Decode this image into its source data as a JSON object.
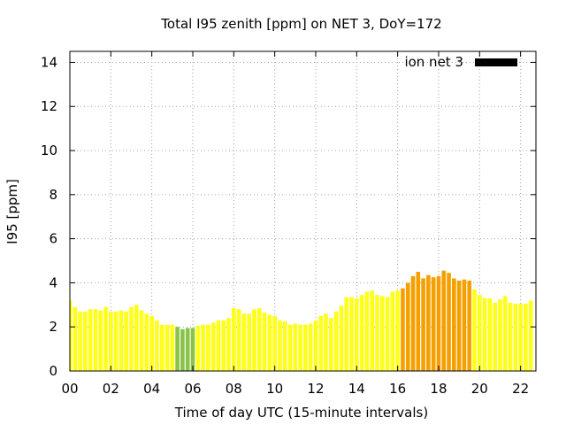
{
  "chart_data": {
    "type": "bar",
    "title": "Total I95 zenith [ppm] on NET 3, DoY=172",
    "xlabel": "Time of day UTC (15-minute intervals)",
    "ylabel": "I95 [ppm]",
    "xlim": [
      0,
      22.75
    ],
    "ylim": [
      0,
      14.5
    ],
    "xticks": [
      0,
      2,
      4,
      6,
      8,
      10,
      12,
      14,
      16,
      18,
      20,
      22
    ],
    "xtick_labels": [
      "00",
      "02",
      "04",
      "06",
      "08",
      "10",
      "12",
      "14",
      "16",
      "18",
      "20",
      "22"
    ],
    "yticks": [
      0,
      2,
      4,
      6,
      8,
      10,
      12,
      14
    ],
    "ytick_labels": [
      "0",
      "2",
      "4",
      "6",
      "8",
      "10",
      "12",
      "14"
    ],
    "grid": true,
    "legend": {
      "position": "top-right",
      "label": "ion net 3",
      "color": "#000000"
    },
    "colors": {
      "low": "#8bc34a",
      "normal": "#ffff1a",
      "high": "#f5a000"
    },
    "bar_interval_hours": 0.25,
    "series": [
      {
        "x": [
          0,
          0.25,
          0.5,
          0.75,
          1,
          1.25,
          1.5,
          1.75,
          2,
          2.25,
          2.5,
          2.75,
          3,
          3.25,
          3.5,
          3.75,
          4,
          4.25,
          4.5,
          4.75,
          5,
          5.25,
          5.5,
          5.75,
          6,
          6.25,
          6.5,
          6.75,
          7,
          7.25,
          7.5,
          7.75,
          8,
          8.25,
          8.5,
          8.75,
          9,
          9.25,
          9.5,
          9.75,
          10,
          10.25,
          10.5,
          10.75,
          11,
          11.25,
          11.5,
          11.75,
          12,
          12.25,
          12.5,
          12.75,
          13,
          13.25,
          13.5,
          13.75,
          14,
          14.25,
          14.5,
          14.75,
          15,
          15.25,
          15.5,
          15.75,
          16,
          16.25,
          16.5,
          16.75,
          17,
          17.25,
          17.5,
          17.75,
          18,
          18.25,
          18.5,
          18.75,
          19,
          19.25,
          19.5,
          19.75,
          20,
          20.25,
          20.5,
          20.75,
          21,
          21.25,
          21.5,
          21.75,
          22,
          22.25,
          22.5
        ],
        "values": [
          3.2,
          2.9,
          2.7,
          2.7,
          2.8,
          2.8,
          2.75,
          2.9,
          2.7,
          2.7,
          2.75,
          2.7,
          2.9,
          3.0,
          2.75,
          2.6,
          2.5,
          2.3,
          2.1,
          2.1,
          2.1,
          2.0,
          1.9,
          1.95,
          1.95,
          2.05,
          2.1,
          2.1,
          2.2,
          2.3,
          2.3,
          2.4,
          2.85,
          2.8,
          2.6,
          2.6,
          2.8,
          2.85,
          2.65,
          2.55,
          2.5,
          2.3,
          2.25,
          2.1,
          2.15,
          2.1,
          2.1,
          2.15,
          2.3,
          2.5,
          2.6,
          2.4,
          2.7,
          2.95,
          3.35,
          3.35,
          3.3,
          3.45,
          3.6,
          3.65,
          3.45,
          3.4,
          3.35,
          3.6,
          3.65,
          3.75,
          4.0,
          4.3,
          4.5,
          4.2,
          4.35,
          4.25,
          4.3,
          4.55,
          4.45,
          4.2,
          4.1,
          4.15,
          4.1,
          3.7,
          3.45,
          3.3,
          3.3,
          3.1,
          3.25,
          3.4,
          3.1,
          3.05,
          3.05,
          3.05,
          3.2
        ],
        "colors": [
          "normal",
          "normal",
          "normal",
          "normal",
          "normal",
          "normal",
          "normal",
          "normal",
          "normal",
          "normal",
          "normal",
          "normal",
          "normal",
          "normal",
          "normal",
          "normal",
          "normal",
          "normal",
          "normal",
          "normal",
          "normal",
          "low",
          "low",
          "low",
          "low",
          "normal",
          "normal",
          "normal",
          "normal",
          "normal",
          "normal",
          "normal",
          "normal",
          "normal",
          "normal",
          "normal",
          "normal",
          "normal",
          "normal",
          "normal",
          "normal",
          "normal",
          "normal",
          "normal",
          "normal",
          "normal",
          "normal",
          "normal",
          "normal",
          "normal",
          "normal",
          "normal",
          "normal",
          "normal",
          "normal",
          "normal",
          "normal",
          "normal",
          "normal",
          "normal",
          "normal",
          "normal",
          "normal",
          "normal",
          "normal",
          "high",
          "high",
          "high",
          "high",
          "high",
          "high",
          "high",
          "high",
          "high",
          "high",
          "high",
          "high",
          "high",
          "high",
          "normal",
          "normal",
          "normal",
          "normal",
          "normal",
          "normal",
          "normal",
          "normal",
          "normal",
          "normal",
          "normal",
          "normal"
        ]
      }
    ]
  }
}
